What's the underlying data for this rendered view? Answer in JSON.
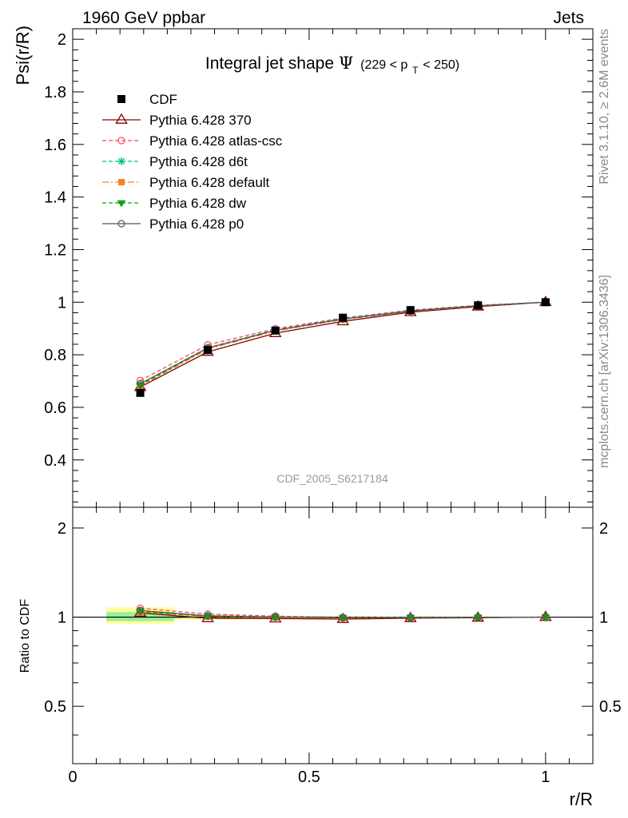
{
  "header": {
    "left": "1960 GeV ppbar",
    "right": "Jets",
    "side_top": "Rivet 3.1.10, ≥ 2.6M events",
    "side_bottom": "mcplots.cern.ch [arXiv:1306.3436]",
    "analysis_id": "CDF_2005_S6217184"
  },
  "title": {
    "main": "Integral jet shape",
    "symbol": "Ψ",
    "range_open": "(229 < p",
    "range_sub": "T",
    "range_close": " < 250)"
  },
  "colors": {
    "CDF": "#000000",
    "p370": "#8b0000",
    "atlas": "#ff4466",
    "d6t": "#00c08b",
    "default": "#ff7f27",
    "dw": "#00aa00",
    "p0": "#555555",
    "band_yellow": "#ffff99",
    "band_green": "#99ee99"
  },
  "chart_data": [
    {
      "type": "line",
      "panel": "main",
      "title": "Integral jet shape Ψ (229 < pT < 250)",
      "xlabel": "r/R",
      "ylabel": "Psi(r/R)",
      "xlim": [
        0,
        1.1
      ],
      "ylim": [
        0.22,
        2.04
      ],
      "yticks": [
        0.4,
        0.6,
        0.8,
        1,
        1.2,
        1.4,
        1.6,
        1.8,
        2
      ],
      "ytick_labels": [
        "0.4",
        "0.6",
        "0.8",
        "1",
        "1.2",
        "1.4",
        "1.6",
        "1.8",
        "2"
      ],
      "x": [
        0.1429,
        0.2857,
        0.4286,
        0.5714,
        0.7143,
        0.8571,
        1.0
      ],
      "legend_position": "top-left",
      "series": [
        {
          "name": "CDF",
          "key": "CDF",
          "marker": "square",
          "dash": "none",
          "values": [
            0.655,
            0.818,
            0.892,
            0.941,
            0.97,
            0.988,
            1.0
          ]
        },
        {
          "name": "Pythia 6.428 370",
          "key": "p370",
          "marker": "triangle-open",
          "dash": "solid",
          "values": [
            0.677,
            0.811,
            0.882,
            0.927,
            0.962,
            0.983,
            1.0
          ]
        },
        {
          "name": "Pythia 6.428 atlas-csc",
          "key": "atlas",
          "marker": "circle-open",
          "dash": "dashed",
          "values": [
            0.702,
            0.838,
            0.899,
            0.94,
            0.97,
            0.988,
            1.0
          ]
        },
        {
          "name": "Pythia 6.428 d6t",
          "key": "d6t",
          "marker": "star",
          "dash": "dashed",
          "values": [
            0.688,
            0.827,
            0.895,
            0.938,
            0.968,
            0.987,
            1.0
          ]
        },
        {
          "name": "Pythia 6.428 default",
          "key": "default",
          "marker": "square-small",
          "dash": "dashdot",
          "values": [
            0.68,
            0.822,
            0.89,
            0.934,
            0.965,
            0.985,
            1.0
          ]
        },
        {
          "name": "Pythia 6.428 dw",
          "key": "dw",
          "marker": "triangle-down",
          "dash": "dashed",
          "values": [
            0.684,
            0.825,
            0.893,
            0.936,
            0.967,
            0.986,
            1.0
          ]
        },
        {
          "name": "Pythia 6.428 p0",
          "key": "p0",
          "marker": "circle-open",
          "dash": "solid",
          "values": [
            0.69,
            0.826,
            0.893,
            0.936,
            0.966,
            0.986,
            1.0
          ]
        }
      ]
    },
    {
      "type": "line",
      "panel": "ratio",
      "xlabel": "r/R",
      "ylabel": "Ratio to CDF",
      "xlim": [
        0,
        1.1
      ],
      "ylim": [
        0.32,
        2.35
      ],
      "yscale": "log",
      "yticks": [
        0.5,
        1,
        2
      ],
      "ytick_labels": [
        "0.5",
        "1",
        "2"
      ],
      "xticks": [
        0,
        0.5,
        1
      ],
      "xtick_labels": [
        "0",
        "0.5",
        "1"
      ],
      "x": [
        0.1429,
        0.2857,
        0.4286,
        0.5714,
        0.7143,
        0.8571,
        1.0
      ],
      "bands": [
        {
          "x0": 0.0714,
          "x1": 0.2143,
          "yellow": [
            0.95,
            1.08
          ],
          "green": [
            0.97,
            1.04
          ]
        },
        {
          "x0": 0.2143,
          "x1": 0.3571,
          "yellow": [
            0.98,
            1.02
          ],
          "green": [
            0.99,
            1.01
          ]
        },
        {
          "x0": 0.3571,
          "x1": 0.5,
          "yellow": [
            0.99,
            1.01
          ],
          "green": [
            0.995,
            1.005
          ]
        },
        {
          "x0": 0.5,
          "x1": 0.6429,
          "yellow": [
            0.99,
            1.01
          ],
          "green": [
            0.995,
            1.005
          ]
        },
        {
          "x0": 0.6429,
          "x1": 0.7857,
          "yellow": [
            0.995,
            1.005
          ],
          "green": [
            0.997,
            1.003
          ]
        },
        {
          "x0": 0.7857,
          "x1": 0.9286,
          "yellow": [
            0.997,
            1.003
          ],
          "green": [
            0.998,
            1.002
          ]
        },
        {
          "x0": 0.9286,
          "x1": 1.0714,
          "yellow": [
            0.999,
            1.001
          ],
          "green": [
            0.9995,
            1.0005
          ]
        }
      ],
      "series": [
        {
          "name": "Pythia 6.428 370",
          "key": "p370",
          "values": [
            1.034,
            0.991,
            0.989,
            0.985,
            0.992,
            0.995,
            1.0
          ]
        },
        {
          "name": "Pythia 6.428 atlas-csc",
          "key": "atlas",
          "values": [
            1.072,
            1.024,
            1.008,
            0.999,
            1.0,
            1.0,
            1.0
          ]
        },
        {
          "name": "Pythia 6.428 d6t",
          "key": "d6t",
          "values": [
            1.05,
            1.011,
            1.003,
            0.997,
            0.998,
            0.999,
            1.0
          ]
        },
        {
          "name": "Pythia 6.428 default",
          "key": "default",
          "values": [
            1.038,
            1.005,
            0.998,
            0.993,
            0.995,
            0.997,
            1.0
          ]
        },
        {
          "name": "Pythia 6.428 dw",
          "key": "dw",
          "values": [
            1.044,
            1.008,
            1.001,
            0.995,
            0.997,
            0.998,
            1.0
          ]
        },
        {
          "name": "Pythia 6.428 p0",
          "key": "p0",
          "values": [
            1.053,
            1.01,
            1.001,
            0.995,
            0.996,
            0.998,
            1.0
          ]
        }
      ]
    }
  ]
}
